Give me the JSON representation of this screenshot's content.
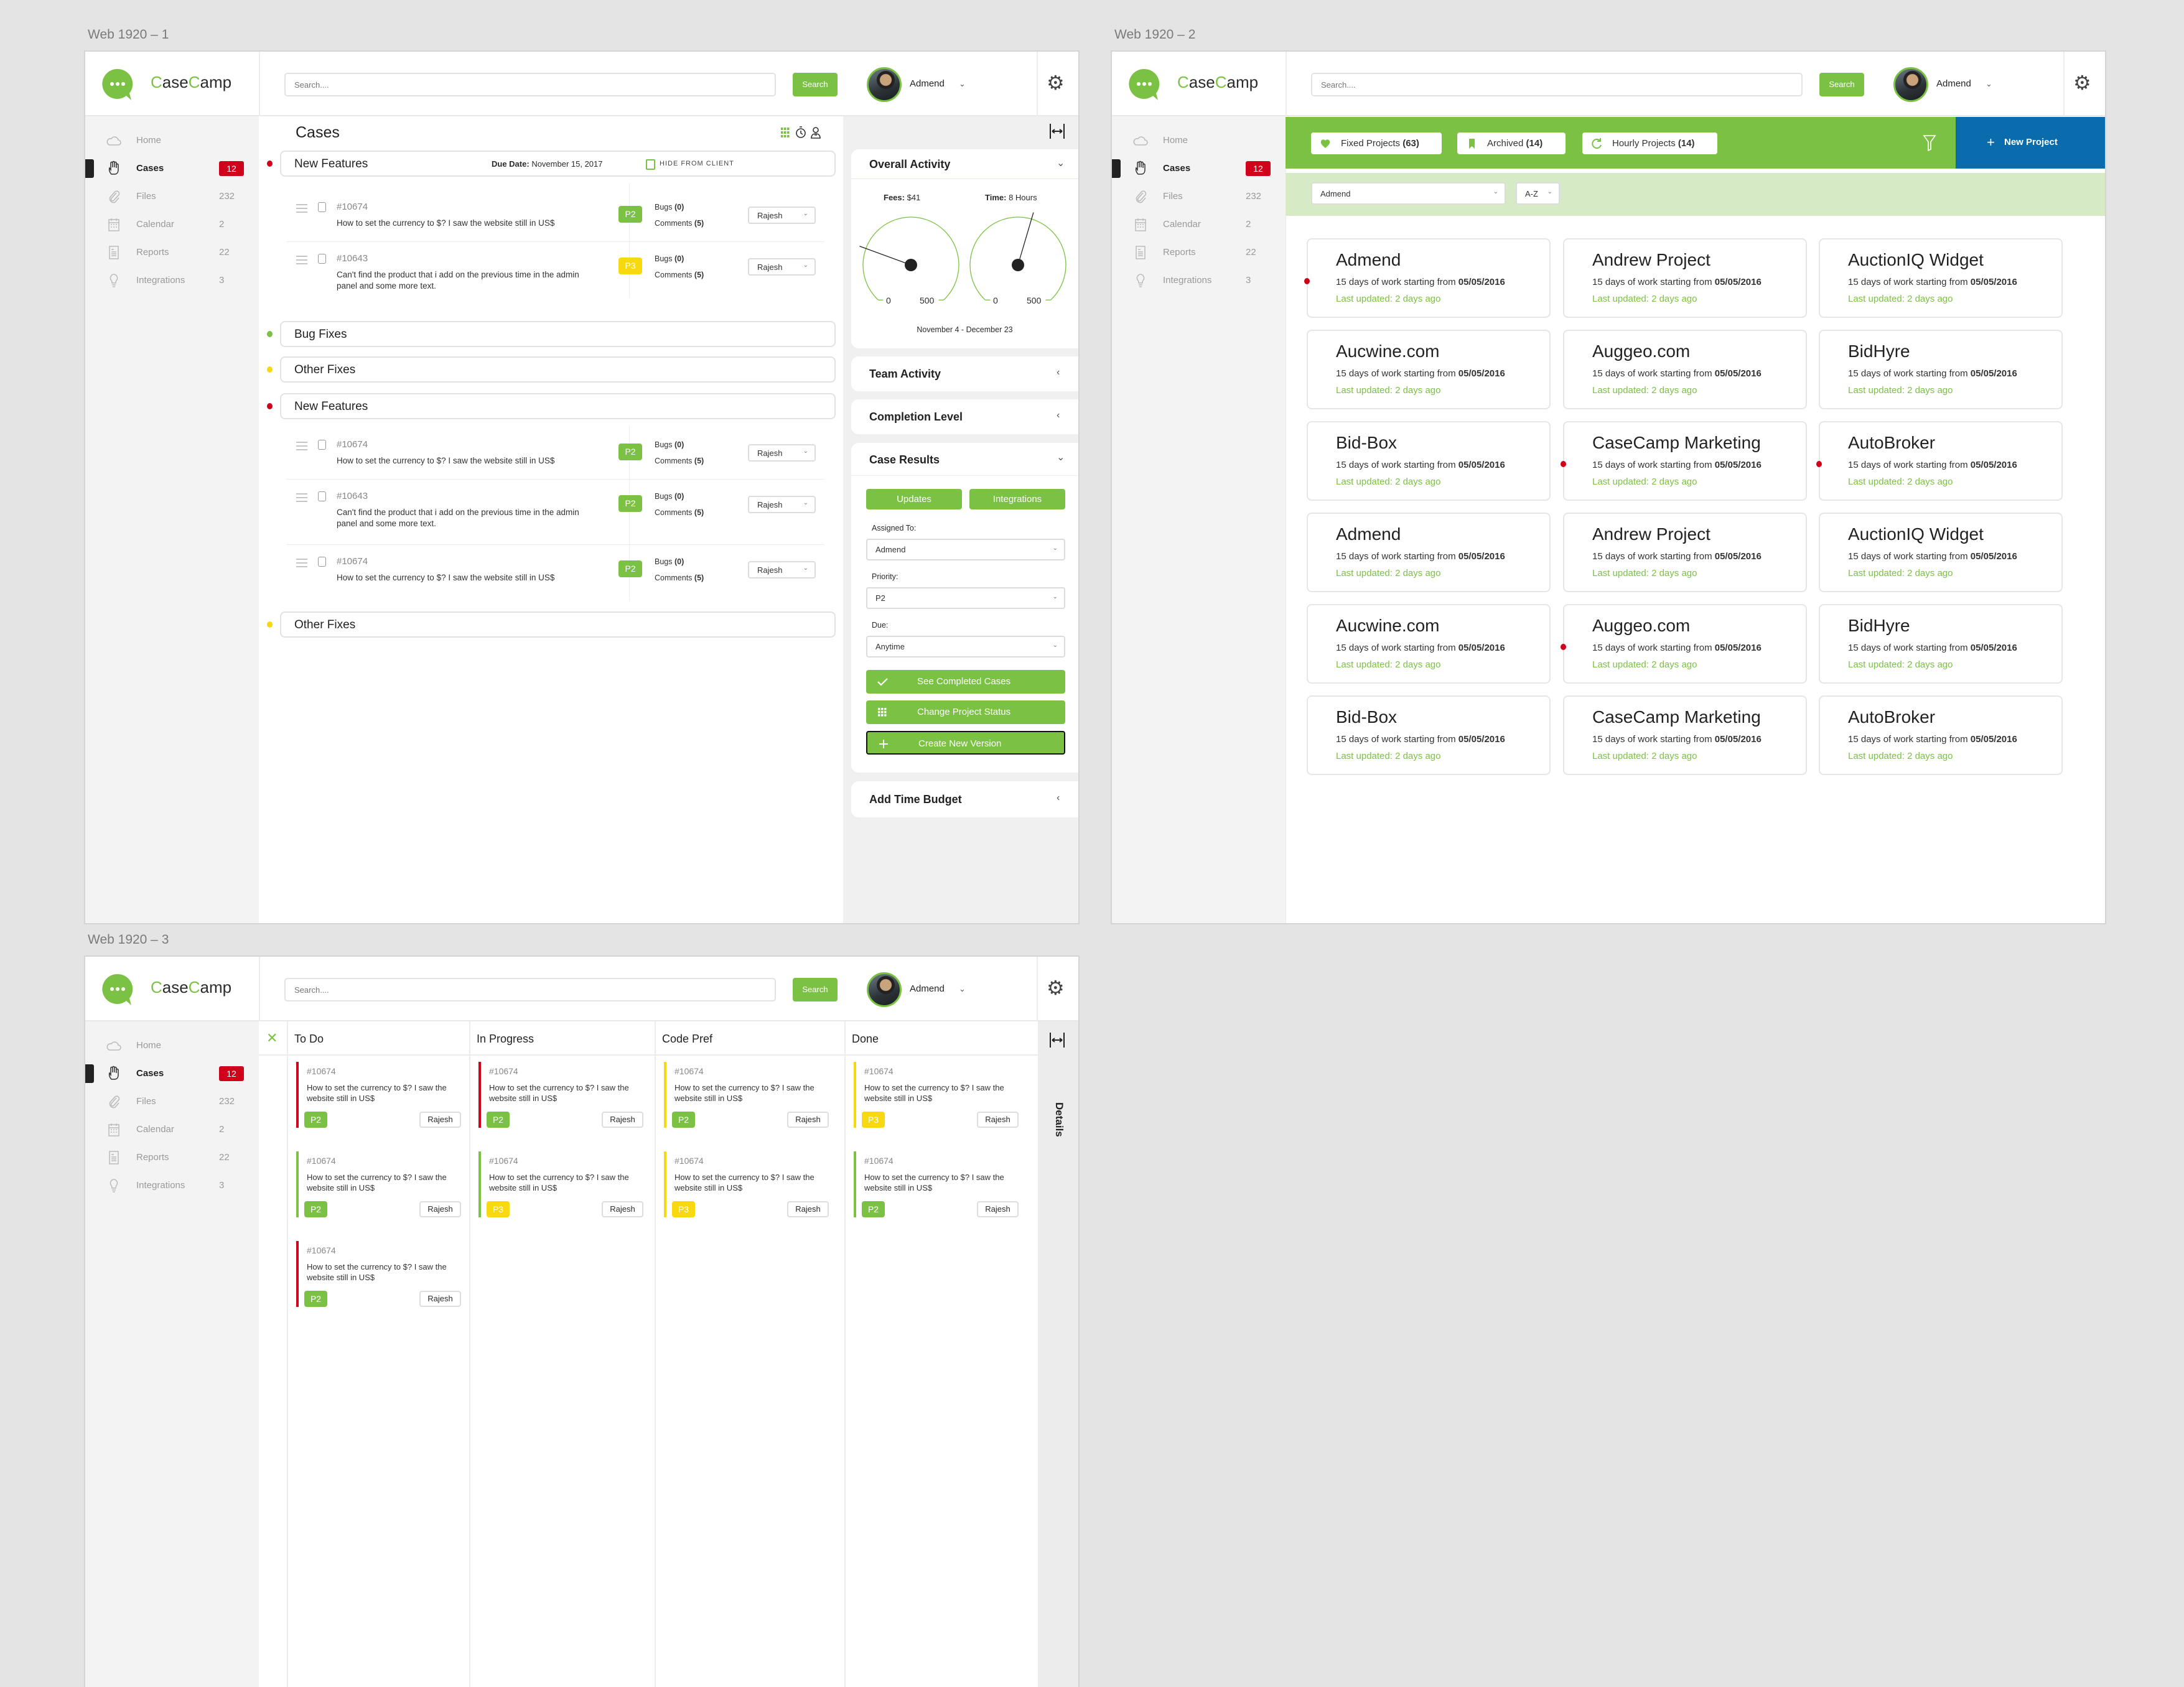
{
  "frames": [
    {
      "label": "Web 1920 – 1"
    },
    {
      "label": "Web 1920 – 2"
    },
    {
      "label": "Web 1920 – 3"
    }
  ],
  "header": {
    "logo_text": "CaseCamp",
    "search_placeholder": "Search....",
    "search_button": "Search",
    "user_name": "Admend",
    "settings_icon": "gear-icon"
  },
  "sidebar": {
    "items": [
      {
        "label": "Home",
        "count": "",
        "icon": "cloud-icon"
      },
      {
        "label": "Cases",
        "count": "12",
        "icon": "hand-icon",
        "active": true
      },
      {
        "label": "Files",
        "count": "232",
        "icon": "paperclip-icon"
      },
      {
        "label": "Calendar",
        "count": "2",
        "icon": "calendar-icon"
      },
      {
        "label": "Reports",
        "count": "22",
        "icon": "report-icon"
      },
      {
        "label": "Integrations",
        "count": "3",
        "icon": "lightbulb-icon"
      }
    ]
  },
  "colors": {
    "green": "#7bc143",
    "light_green": "#d7eac6",
    "blue": "#0a6cad",
    "red": "#d0021b",
    "yellow": "#f8d90f"
  },
  "cases_view": {
    "title": "Cases",
    "groups": [
      {
        "title": "New Features",
        "dot": "red",
        "due_label": "Due Date:",
        "due_value": "November 15, 2017",
        "hide_label": "HIDE FROM CLIENT",
        "rows": [
          {
            "id": "#10674",
            "text": "How to set the currency to $? I saw the website still in US$",
            "priority": "P2",
            "bugs_label": "Bugs",
            "bugs": "(0)",
            "comments_label": "Comments",
            "comments": "(5)",
            "assignee": "Rajesh"
          },
          {
            "id": "#10643",
            "text": "Can't find the product that i add on the previous time in the admin panel and some more text.",
            "priority": "P3",
            "bugs_label": "Bugs",
            "bugs": "(0)",
            "comments_label": "Comments",
            "comments": "(5)",
            "assignee": "Rajesh"
          }
        ]
      },
      {
        "title": "Bug Fixes",
        "dot": "green",
        "rows": []
      },
      {
        "title": "Other Fixes",
        "dot": "yellow",
        "rows": []
      },
      {
        "title": "New Features",
        "dot": "red",
        "rows": [
          {
            "id": "#10674",
            "text": "How to set the currency to $? I saw the website still in US$",
            "priority": "P2",
            "bugs_label": "Bugs",
            "bugs": "(0)",
            "comments_label": "Comments",
            "comments": "(5)",
            "assignee": "Rajesh"
          },
          {
            "id": "#10643",
            "text": "Can't find the product that i add on the previous time in the admin panel and some more text.",
            "priority": "P2",
            "bugs_label": "Bugs",
            "bugs": "(0)",
            "comments_label": "Comments",
            "comments": "(5)",
            "assignee": "Rajesh"
          },
          {
            "id": "#10674",
            "text": "How to set the currency to $? I saw the website still in US$",
            "priority": "P2",
            "bugs_label": "Bugs",
            "bugs": "(0)",
            "comments_label": "Comments",
            "comments": "(5)",
            "assignee": "Rajesh"
          }
        ]
      },
      {
        "title": "Other Fixes",
        "dot": "yellow",
        "rows": []
      }
    ],
    "panel": {
      "overall_activity": {
        "title": "Overall Activity",
        "fees_label": "Fees:",
        "fees_value": "$41",
        "time_label": "Time:",
        "time_value": "8 Hours",
        "gauge_min": "0",
        "gauge_max": "500",
        "fees_needle_level": 0.245,
        "time_needle_level": 0.56,
        "date_range": "November 4 - December 23"
      },
      "collapsed_sections": [
        "Team Activity",
        "Completion Level"
      ],
      "case_results": {
        "title": "Case Results",
        "tabs": [
          "Updates",
          "Integrations"
        ],
        "fields": [
          {
            "label": "Assigned To:",
            "value": "Admend"
          },
          {
            "label": "Priority:",
            "value": "P2"
          },
          {
            "label": "Due:",
            "value": "Anytime"
          }
        ],
        "actions": [
          {
            "label": "See Completed Cases",
            "icon": "check-icon"
          },
          {
            "label": "Change Project Status",
            "icon": "grid-icon"
          },
          {
            "label": "Create New Version",
            "icon": "plus-icon",
            "focused": true
          }
        ]
      },
      "time_budget": "Add Time Budget"
    }
  },
  "projects_view": {
    "tabs": [
      {
        "label": "Fixed Projects",
        "count": "(63)",
        "icon": "heart-icon"
      },
      {
        "label": "Archived",
        "count": "(14)",
        "icon": "bookmark-icon"
      },
      {
        "label": "Hourly Projects",
        "count": "(14)",
        "icon": "refresh-icon"
      }
    ],
    "new_project": "New Project",
    "owner_filter": "Admend",
    "sort_filter": "A-Z",
    "cards": [
      {
        "name": "Admend",
        "summary": "15 days of work starting from",
        "date": "05/05/2016",
        "updated": "Last updated: 2 days ago",
        "flag": true
      },
      {
        "name": "Andrew Project",
        "summary": "15 days of work starting from",
        "date": "05/05/2016",
        "updated": "Last updated: 2 days ago",
        "flag": false
      },
      {
        "name": "AuctionIQ Widget",
        "summary": "15 days of work starting from",
        "date": "05/05/2016",
        "updated": "Last updated: 2 days ago",
        "flag": false
      },
      {
        "name": "Aucwine.com",
        "summary": "15 days of work starting from",
        "date": "05/05/2016",
        "updated": "Last updated: 2 days ago",
        "flag": false
      },
      {
        "name": "Auggeo.com",
        "summary": "15 days of work starting from",
        "date": "05/05/2016",
        "updated": "Last updated: 2 days ago",
        "flag": false
      },
      {
        "name": "BidHyre",
        "summary": "15 days of work starting from",
        "date": "05/05/2016",
        "updated": "Last updated: 2 days ago",
        "flag": false
      },
      {
        "name": "Bid-Box",
        "summary": "15 days of work starting from",
        "date": "05/05/2016",
        "updated": "Last updated: 2 days ago",
        "flag": false
      },
      {
        "name": "CaseCamp Marketing",
        "summary": "15 days of work starting from",
        "date": "05/05/2016",
        "updated": "Last updated: 2 days ago",
        "flag": true
      },
      {
        "name": "AutoBroker",
        "summary": "15 days of work starting from",
        "date": "05/05/2016",
        "updated": "Last updated: 2 days ago",
        "flag": true
      },
      {
        "name": "Admend",
        "summary": "15 days of work starting from",
        "date": "05/05/2016",
        "updated": "Last updated: 2 days ago",
        "flag": false
      },
      {
        "name": "Andrew Project",
        "summary": "15 days of work starting from",
        "date": "05/05/2016",
        "updated": "Last updated: 2 days ago",
        "flag": false
      },
      {
        "name": "AuctionIQ Widget",
        "summary": "15 days of work starting from",
        "date": "05/05/2016",
        "updated": "Last updated: 2 days ago",
        "flag": false
      },
      {
        "name": "Aucwine.com",
        "summary": "15 days of work starting from",
        "date": "05/05/2016",
        "updated": "Last updated: 2 days ago",
        "flag": false
      },
      {
        "name": "Auggeo.com",
        "summary": "15 days of work starting from",
        "date": "05/05/2016",
        "updated": "Last updated: 2 days ago",
        "flag": true
      },
      {
        "name": "BidHyre",
        "summary": "15 days of work starting from",
        "date": "05/05/2016",
        "updated": "Last updated: 2 days ago",
        "flag": false
      },
      {
        "name": "Bid-Box",
        "summary": "15 days of work starting from",
        "date": "05/05/2016",
        "updated": "Last updated: 2 days ago",
        "flag": false
      },
      {
        "name": "CaseCamp Marketing",
        "summary": "15 days of work starting from",
        "date": "05/05/2016",
        "updated": "Last updated: 2 days ago",
        "flag": false
      },
      {
        "name": "AutoBroker",
        "summary": "15 days of work starting from",
        "date": "05/05/2016",
        "updated": "Last updated: 2 days ago",
        "flag": false
      }
    ]
  },
  "board_view": {
    "details_label": "Details",
    "columns": [
      {
        "title": "To Do",
        "cards": [
          {
            "id": "#10674",
            "text": "How to set the currency to $? I saw the website still in US$",
            "priority": "P2",
            "assignee": "Rajesh",
            "status_color": "red"
          },
          {
            "id": "#10674",
            "text": "How to set the currency to $? I saw the website still in US$",
            "priority": "P2",
            "assignee": "Rajesh",
            "status_color": "green"
          },
          {
            "id": "#10674",
            "text": "How to set the currency to $? I saw the website still in US$",
            "priority": "P2",
            "assignee": "Rajesh",
            "status_color": "red"
          }
        ]
      },
      {
        "title": "In Progress",
        "cards": [
          {
            "id": "#10674",
            "text": "How to set the currency to $? I saw the website still in US$",
            "priority": "P2",
            "assignee": "Rajesh",
            "status_color": "red"
          },
          {
            "id": "#10674",
            "text": "How to set the currency to $? I saw the website still in US$",
            "priority": "P3",
            "assignee": "Rajesh",
            "status_color": "green"
          }
        ]
      },
      {
        "title": "Code Pref",
        "cards": [
          {
            "id": "#10674",
            "text": "How to set the currency to $? I saw the website still in US$",
            "priority": "P2",
            "assignee": "Rajesh",
            "status_color": "yellow"
          },
          {
            "id": "#10674",
            "text": "How to set the currency to $? I saw the website still in US$",
            "priority": "P3",
            "assignee": "Rajesh",
            "status_color": "yellow"
          }
        ]
      },
      {
        "title": "Done",
        "cards": [
          {
            "id": "#10674",
            "text": "How to set the currency to $? I saw the website still in US$",
            "priority": "P3",
            "assignee": "Rajesh",
            "status_color": "yellow"
          },
          {
            "id": "#10674",
            "text": "How to set the currency to $? I saw the website still in US$",
            "priority": "P2",
            "assignee": "Rajesh",
            "status_color": "green"
          }
        ]
      }
    ]
  }
}
